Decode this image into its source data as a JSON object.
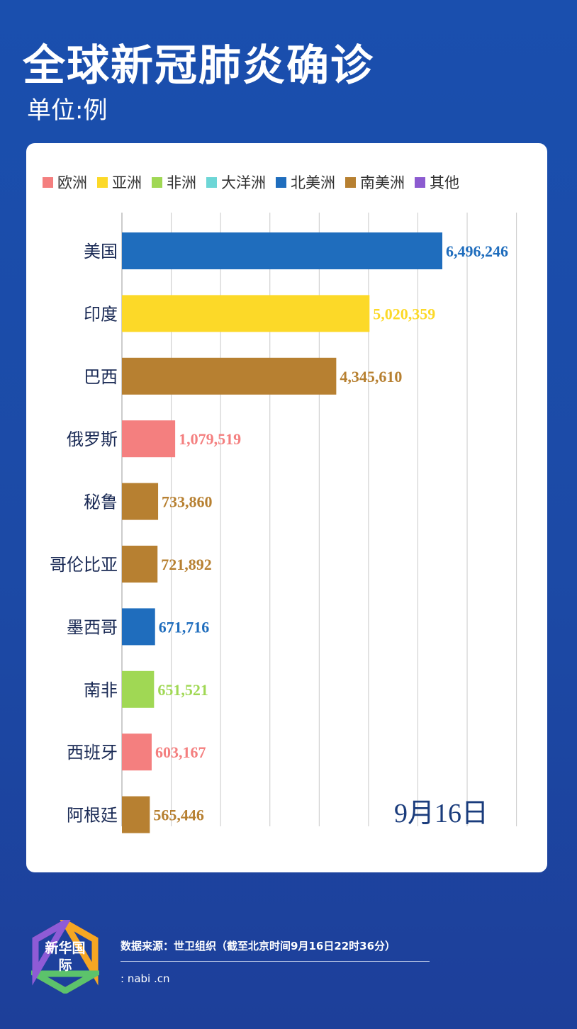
{
  "header": {
    "title": "全球新冠肺炎确诊",
    "unit": "单位:例"
  },
  "legend": [
    {
      "label": "欧洲",
      "color": "#f47f7f"
    },
    {
      "label": "亚洲",
      "color": "#fcd928"
    },
    {
      "label": "非洲",
      "color": "#a0d854"
    },
    {
      "label": "大洋洲",
      "color": "#6dd6d6"
    },
    {
      "label": "北美洲",
      "color": "#1f6dbd"
    },
    {
      "label": "南美洲",
      "color": "#b78031"
    },
    {
      "label": "其他",
      "color": "#8c5bd0"
    }
  ],
  "chart_data": {
    "type": "bar",
    "orientation": "horizontal",
    "categories": [
      "美国",
      "印度",
      "巴西",
      "俄罗斯",
      "秘鲁",
      "哥伦比亚",
      "墨西哥",
      "南非",
      "西班牙",
      "阿根廷"
    ],
    "values": [
      6496246,
      5020359,
      4345610,
      1079519,
      733860,
      721892,
      671716,
      651521,
      603167,
      565446
    ],
    "value_labels": [
      "6,496,246",
      "5,020,359",
      "4,345,610",
      "1,079,519",
      "733,860",
      "721,892",
      "671,716",
      "651,521",
      "603,167",
      "565,446"
    ],
    "regions": [
      "北美洲",
      "亚洲",
      "南美洲",
      "欧洲",
      "南美洲",
      "南美洲",
      "北美洲",
      "非洲",
      "欧洲",
      "南美洲"
    ],
    "xlim": [
      0,
      9000000
    ],
    "grid": true,
    "legend_position": "top"
  },
  "date_label": "9月16日",
  "footer": {
    "logo_text": "新华国际",
    "source": "数据来源：世卫组织（截至北京时间9月16日22时36分）",
    "site": ":     nabi  .cn"
  }
}
